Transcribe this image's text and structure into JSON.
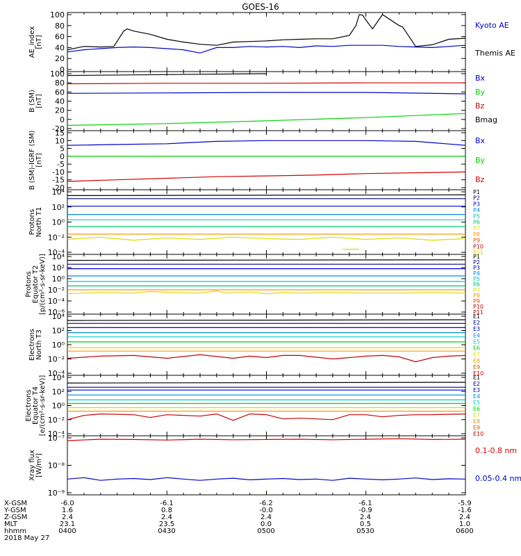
{
  "title": "GOES-16",
  "date": "2018 May 27",
  "colors": {
    "frame": "#000000",
    "black": "#000000",
    "blue": "#0000c8",
    "green": "#00d200",
    "red": "#d20000"
  },
  "footer": {
    "rows": [
      {
        "label": "X-GSM",
        "values": [
          "-6.0",
          "-6.1",
          "-6.2",
          "-6.1",
          "-5.9"
        ]
      },
      {
        "label": "Y-GSM",
        "values": [
          "1.6",
          "0.8",
          "-0.0",
          "-0.9",
          "-1.6"
        ]
      },
      {
        "label": "Z-GSM",
        "values": [
          "2.4",
          "2.4",
          "2.4",
          "2.4",
          "2.4"
        ]
      },
      {
        "label": "MLT",
        "values": [
          "23.1",
          "23.5",
          "0.0",
          "0.5",
          "1.0"
        ]
      },
      {
        "label": "hhmm",
        "values": [
          "0400",
          "0430",
          "0500",
          "0530",
          "0600"
        ]
      }
    ]
  },
  "chart_data": [
    {
      "type": "line",
      "ylabel": [
        "AE_index",
        "[nT]"
      ],
      "ylim": [
        0,
        100
      ],
      "yticks": [
        "0",
        "20",
        "40",
        "60",
        "80",
        "100"
      ],
      "xlim": [
        0,
        120
      ],
      "series": [
        {
          "name": "Kyoto AE",
          "color": "blue",
          "x": [
            0,
            5,
            10,
            15,
            20,
            25,
            30,
            35,
            40,
            45,
            50,
            55,
            60,
            65,
            70,
            75,
            80,
            85,
            90,
            95,
            100,
            105,
            110,
            115,
            120
          ],
          "y": [
            32,
            36,
            38,
            40,
            41,
            40,
            38,
            36,
            30,
            40,
            40,
            42,
            41,
            42,
            40,
            43,
            42,
            44,
            44,
            44,
            42,
            41,
            40,
            42,
            44
          ]
        },
        {
          "name": "Themis AE",
          "color": "black",
          "x": [
            0,
            5,
            10,
            14,
            17,
            18,
            20,
            25,
            30,
            35,
            40,
            45,
            50,
            55,
            60,
            65,
            70,
            75,
            80,
            85,
            87,
            88,
            89,
            90,
            92,
            95,
            100,
            101,
            105,
            110,
            115,
            120
          ],
          "y": [
            36,
            42,
            41,
            42,
            70,
            74,
            70,
            64,
            55,
            50,
            46,
            44,
            50,
            51,
            52,
            54,
            55,
            56,
            56,
            62,
            80,
            100,
            99,
            90,
            74,
            100,
            80,
            78,
            42,
            45,
            55,
            57
          ]
        }
      ]
    },
    {
      "type": "line",
      "ylabel": [
        "B (SM)",
        "[nT]"
      ],
      "ylim": [
        -20,
        100
      ],
      "yticks": [
        "-20",
        "0",
        "20",
        "40",
        "60",
        "80",
        "100"
      ],
      "xlim": [
        0,
        120
      ],
      "series": [
        {
          "name": "Bx",
          "color": "blue",
          "x": [
            0,
            30,
            60,
            90,
            120
          ],
          "y": [
            57,
            58,
            59,
            59,
            56
          ]
        },
        {
          "name": "By",
          "color": "green",
          "x": [
            0,
            30,
            60,
            90,
            120
          ],
          "y": [
            -13,
            -9,
            -3,
            4,
            13
          ]
        },
        {
          "name": "Bz",
          "color": "red",
          "x": [
            0,
            30,
            60,
            90,
            120
          ],
          "y": [
            78,
            79,
            79,
            80,
            80
          ]
        },
        {
          "name": "Bmag",
          "color": "black",
          "x": [
            0,
            30,
            60
          ],
          "y": [
            96,
            98,
            100
          ]
        }
      ]
    },
    {
      "type": "line",
      "ylabel": [
        "B (SM)-IGRF (SM)",
        "[nT]"
      ],
      "ylim": [
        -20,
        15
      ],
      "yticks": [
        "-20",
        "-15",
        "-10",
        "-5",
        "0",
        "5",
        "10",
        "15"
      ],
      "xlim": [
        0,
        120
      ],
      "series": [
        {
          "name": "Bx",
          "color": "blue",
          "x": [
            0,
            15,
            30,
            45,
            60,
            75,
            90,
            105,
            120
          ],
          "y": [
            7,
            7.5,
            8,
            9.5,
            10,
            10,
            10,
            9.5,
            7
          ]
        },
        {
          "name": "By",
          "color": "green",
          "x": [
            0,
            30,
            60,
            90,
            120
          ],
          "y": [
            0,
            0,
            0,
            0,
            0
          ]
        },
        {
          "name": "Bz",
          "color": "red",
          "x": [
            0,
            15,
            30,
            45,
            60,
            75,
            90,
            105,
            120
          ],
          "y": [
            -16,
            -15,
            -14,
            -13,
            -12.5,
            -12,
            -11,
            -10.5,
            -10
          ]
        }
      ]
    },
    {
      "type": "line",
      "ylabel": [
        "Protons",
        "North T1"
      ],
      "log": true,
      "ylim": [
        -4,
        4
      ],
      "yticks": [
        "10⁻⁴",
        "10⁻²",
        "10⁰",
        "10²",
        "10⁴"
      ],
      "xlim": [
        0,
        120
      ],
      "legend": [
        "P1",
        "P2",
        "P3",
        "P4",
        "P5",
        "P6",
        "P7",
        "P8",
        "P9",
        "P10",
        "P11"
      ],
      "series": [
        {
          "name": "P1",
          "color": "#000000",
          "x": [
            0,
            120
          ],
          "y": [
            3.5,
            3.6
          ]
        },
        {
          "name": "P2",
          "color": "#000080",
          "x": [
            0,
            120
          ],
          "y": [
            3.1,
            3.1
          ]
        },
        {
          "name": "P3",
          "color": "#0000c8",
          "x": [
            0,
            120
          ],
          "y": [
            2.1,
            2.1
          ]
        },
        {
          "name": "P4",
          "color": "#0088e0",
          "x": [
            0,
            120
          ],
          "y": [
            1.0,
            1.0
          ]
        },
        {
          "name": "P5",
          "color": "#00c8c8",
          "x": [
            0,
            120
          ],
          "y": [
            0.3,
            0.3
          ]
        },
        {
          "name": "P6",
          "color": "#00c864",
          "x": [
            0,
            120
          ],
          "y": [
            -0.6,
            -0.6
          ]
        },
        {
          "name": "P7",
          "color": "#dcdc00",
          "x": [
            0,
            10,
            20,
            30,
            40,
            50,
            60,
            70,
            80,
            90,
            100,
            110,
            120
          ],
          "y": [
            -2.3,
            -2.0,
            -2.4,
            -2.1,
            -2.3,
            -2.0,
            -2.2,
            -2.3,
            -2.0,
            -2.3,
            -2.1,
            -2.4,
            -2.2
          ]
        },
        {
          "name": "P8",
          "color": "#ff9600",
          "x": [
            0,
            120
          ],
          "y": [
            -1.6,
            -1.6
          ]
        },
        {
          "name": "P11",
          "color": "#dcdc00",
          "x": [
            83,
            88
          ],
          "y": [
            -3.6,
            -3.6
          ]
        }
      ]
    },
    {
      "type": "line",
      "ylabel": [
        "Protons",
        "Equator T2",
        "[p/(cm²-s-sr-keV)]"
      ],
      "log": true,
      "ylim": [
        -6,
        4
      ],
      "yticks": [
        "10⁻⁶",
        "10⁻⁴",
        "10⁻²",
        "10⁰",
        "10²",
        "10⁴"
      ],
      "xlim": [
        0,
        120
      ],
      "legend": [
        "P1",
        "P2",
        "P3",
        "P4",
        "P5",
        "P6",
        "P7",
        "P8",
        "P9",
        "P10",
        "P11"
      ],
      "series": [
        {
          "name": "P1",
          "color": "#000000",
          "x": [
            0,
            120
          ],
          "y": [
            3.3,
            3.4
          ]
        },
        {
          "name": "P2",
          "color": "#000080",
          "x": [
            0,
            120
          ],
          "y": [
            2.6,
            2.6
          ]
        },
        {
          "name": "P3",
          "color": "#0000c8",
          "x": [
            0,
            120
          ],
          "y": [
            1.8,
            1.8
          ]
        },
        {
          "name": "P4",
          "color": "#0088e0",
          "x": [
            0,
            120
          ],
          "y": [
            0.5,
            0.5
          ]
        },
        {
          "name": "P5",
          "color": "#00c8c8",
          "x": [
            0,
            120
          ],
          "y": [
            -0.5,
            -0.5
          ]
        },
        {
          "name": "P6",
          "color": "#00c864",
          "x": [
            0,
            120
          ],
          "y": [
            -1.3,
            -1.3
          ]
        },
        {
          "name": "P7",
          "color": "#dcdc00",
          "x": [
            0,
            10,
            20,
            25,
            32,
            40,
            45,
            48,
            55,
            60,
            65,
            70,
            80,
            90,
            100,
            110,
            120
          ],
          "y": [
            -2.7,
            -2.5,
            -2.6,
            -2.3,
            -2.5,
            -2.6,
            -2.2,
            -2.6,
            -2.4,
            -2.7,
            -2.5,
            -2.6,
            -2.5,
            -2.6,
            -2.6,
            -2.5,
            -2.6
          ]
        },
        {
          "name": "P8",
          "color": "#ff9600",
          "x": [
            0,
            120
          ],
          "y": [
            -2.0,
            -2.0
          ]
        }
      ]
    },
    {
      "type": "line",
      "ylabel": [
        "Electrons",
        "North T3"
      ],
      "log": true,
      "ylim": [
        -4,
        4
      ],
      "yticks": [
        "10⁻⁴",
        "10⁻²",
        "10⁰",
        "10²",
        "10⁴"
      ],
      "xlim": [
        0,
        120
      ],
      "legend": [
        "E1",
        "E2",
        "E3",
        "E4",
        "E5",
        "E6",
        "E7",
        "E8",
        "E9",
        "E10"
      ],
      "series": [
        {
          "name": "E1",
          "color": "#000000",
          "x": [
            0,
            120
          ],
          "y": [
            3.4,
            3.5
          ]
        },
        {
          "name": "E2",
          "color": "#000080",
          "x": [
            0,
            120
          ],
          "y": [
            3.0,
            3.0
          ]
        },
        {
          "name": "E3",
          "color": "#0000c8",
          "x": [
            0,
            120
          ],
          "y": [
            2.4,
            2.4
          ]
        },
        {
          "name": "E4",
          "color": "#0088e0",
          "x": [
            0,
            120
          ],
          "y": [
            1.7,
            1.7
          ]
        },
        {
          "name": "E5",
          "color": "#00c8c8",
          "x": [
            0,
            120
          ],
          "y": [
            1.1,
            1.1
          ]
        },
        {
          "name": "E6",
          "color": "#00d200",
          "x": [
            0,
            120
          ],
          "y": [
            0.4,
            0.4
          ]
        },
        {
          "name": "E7",
          "color": "#dcdc00",
          "x": [
            0,
            120
          ],
          "y": [
            -0.4,
            -0.4
          ]
        },
        {
          "name": "E8",
          "color": "#ff9600",
          "x": [
            0,
            120
          ],
          "y": [
            -0.9,
            -0.9
          ]
        },
        {
          "name": "E10",
          "color": "#c80000",
          "x": [
            0,
            10,
            20,
            30,
            40,
            50,
            55,
            60,
            65,
            70,
            80,
            85,
            90,
            95,
            100,
            105,
            110,
            115,
            120
          ],
          "y": [
            -1.9,
            -1.6,
            -1.5,
            -1.9,
            -1.4,
            -1.9,
            -1.6,
            -1.8,
            -1.5,
            -1.5,
            -2.0,
            -1.8,
            -1.6,
            -1.5,
            -1.7,
            -2.4,
            -1.8,
            -1.6,
            -1.5
          ]
        }
      ]
    },
    {
      "type": "line",
      "ylabel": [
        "Electrons",
        "Equator T4",
        "[e/(cm²-s-sr-keV)]"
      ],
      "log": true,
      "ylim": [
        -4,
        4
      ],
      "yticks": [
        "10⁻⁴",
        "10⁻²",
        "10⁰",
        "10²",
        "10⁴"
      ],
      "xlim": [
        0,
        120
      ],
      "legend": [
        "E1",
        "E2",
        "E3",
        "E4",
        "E5",
        "E6",
        "E7",
        "E8",
        "E9",
        "E10"
      ],
      "series": [
        {
          "name": "E1",
          "color": "#000000",
          "x": [
            0,
            120
          ],
          "y": [
            3.2,
            3.3
          ]
        },
        {
          "name": "E2",
          "color": "#000080",
          "x": [
            0,
            120
          ],
          "y": [
            2.6,
            2.6
          ]
        },
        {
          "name": "E3",
          "color": "#0000c8",
          "x": [
            0,
            120
          ],
          "y": [
            2.2,
            2.2
          ]
        },
        {
          "name": "E4",
          "color": "#0088e0",
          "x": [
            0,
            120
          ],
          "y": [
            1.5,
            1.5
          ]
        },
        {
          "name": "E5",
          "color": "#00c8c8",
          "x": [
            0,
            120
          ],
          "y": [
            0.8,
            0.8
          ]
        },
        {
          "name": "E6",
          "color": "#00d200",
          "x": [
            0,
            120
          ],
          "y": [
            0.3,
            0.3
          ]
        },
        {
          "name": "E7",
          "color": "#dcdc00",
          "x": [
            0,
            120
          ],
          "y": [
            -0.3,
            -0.3
          ]
        },
        {
          "name": "E8",
          "color": "#ff9600",
          "x": [
            0,
            120
          ],
          "y": [
            -0.8,
            -0.8
          ]
        },
        {
          "name": "E10",
          "color": "#c80000",
          "x": [
            0,
            5,
            10,
            20,
            25,
            30,
            40,
            45,
            50,
            55,
            60,
            65,
            70,
            80,
            85,
            90,
            95,
            100,
            105,
            110,
            120
          ],
          "y": [
            -2.0,
            -1.4,
            -1.2,
            -1.3,
            -1.7,
            -1.3,
            -1.5,
            -1.2,
            -2.1,
            -1.2,
            -1.3,
            -1.9,
            -1.8,
            -2.0,
            -1.3,
            -1.3,
            -1.6,
            -1.4,
            -1.3,
            -1.3,
            -1.2
          ]
        }
      ]
    },
    {
      "type": "line",
      "ylabel": [
        "Xray flux",
        "[W/m²]"
      ],
      "log": true,
      "ylim": [
        -9,
        -7
      ],
      "yticks": [
        "10⁻⁹",
        "10⁻⁸",
        "10⁻⁷"
      ],
      "xlim": [
        0,
        120
      ],
      "series": [
        {
          "name": "0.1-0.8 nm",
          "color": "red",
          "x": [
            0,
            10,
            20,
            30,
            40,
            50,
            60,
            70,
            80,
            90,
            100,
            110,
            120
          ],
          "y": [
            -7.1,
            -7.05,
            -7.06,
            -7.08,
            -7.05,
            -7.07,
            -7.06,
            -7.05,
            -7.07,
            -7.05,
            -7.03,
            -7.06,
            -7.05
          ]
        },
        {
          "name": "0.05-0.4 nm",
          "color": "blue",
          "x": [
            0,
            5,
            10,
            15,
            20,
            25,
            30,
            35,
            40,
            45,
            50,
            55,
            60,
            65,
            70,
            75,
            80,
            85,
            90,
            95,
            100,
            105,
            110,
            115,
            120
          ],
          "y": [
            -8.5,
            -8.45,
            -8.55,
            -8.5,
            -8.48,
            -8.52,
            -8.45,
            -8.5,
            -8.55,
            -8.5,
            -8.47,
            -8.53,
            -8.5,
            -8.48,
            -8.52,
            -8.5,
            -8.55,
            -8.47,
            -8.5,
            -8.53,
            -8.5,
            -8.46,
            -8.52,
            -8.49,
            -8.5
          ]
        }
      ]
    }
  ]
}
